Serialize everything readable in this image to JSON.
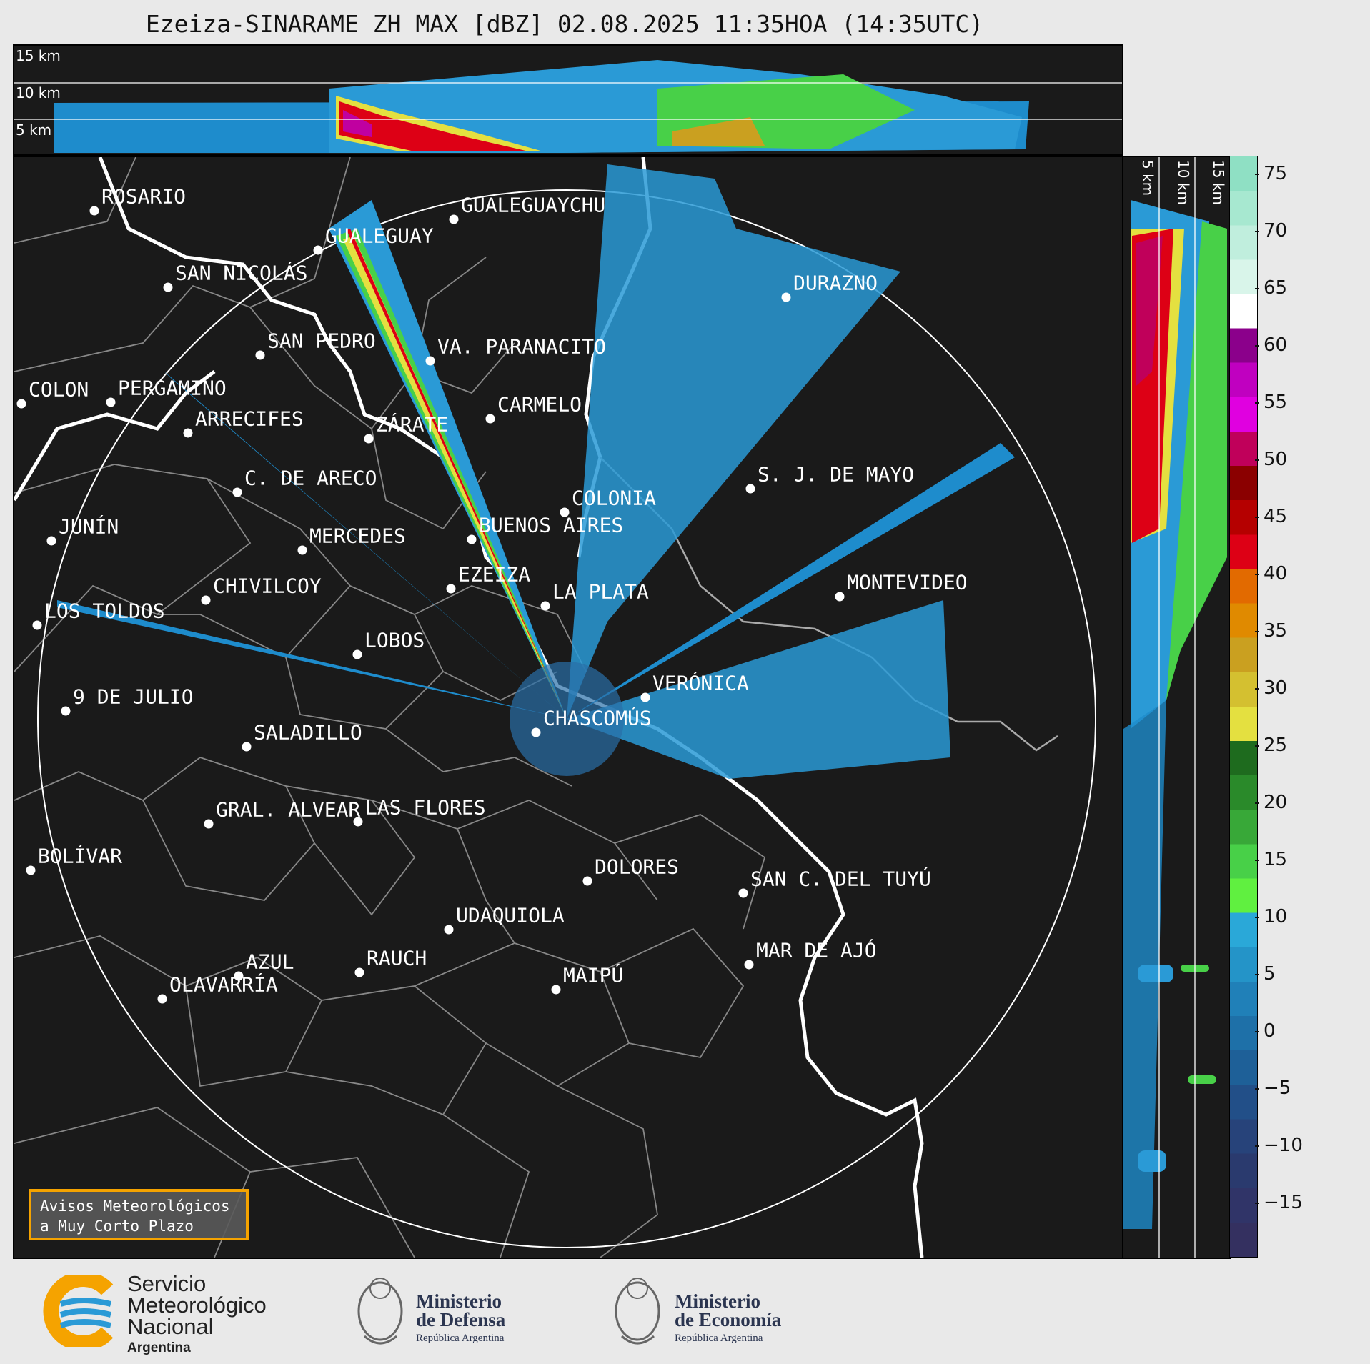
{
  "title": "Ezeiza-SINARAME ZH MAX [dBZ] 02.08.2025 11:35HOA (14:35UTC)",
  "top_panel": {
    "altitude_labels": [
      "15 km",
      "10 km",
      "5 km"
    ]
  },
  "side_panel": {
    "altitude_labels": [
      "5 km",
      "10 km",
      "15 km"
    ]
  },
  "cities": [
    {
      "name": "ROSARIO"
    },
    {
      "name": "GUALEGUAYCHU"
    },
    {
      "name": "GUALEGUAY"
    },
    {
      "name": "SAN NICOLÁS"
    },
    {
      "name": "DURAZNO"
    },
    {
      "name": "SAN PEDRO"
    },
    {
      "name": "VA. PARANACITO"
    },
    {
      "name": "COLON"
    },
    {
      "name": "PERGAMINO"
    },
    {
      "name": "CARMELO"
    },
    {
      "name": "ARRECIFES"
    },
    {
      "name": "ZÁRATE"
    },
    {
      "name": "S. J. DE MAYO"
    },
    {
      "name": "C. DE ARECO"
    },
    {
      "name": "COLONIA"
    },
    {
      "name": "JUNÍN"
    },
    {
      "name": "BUENOS AIRES"
    },
    {
      "name": "MERCEDES"
    },
    {
      "name": "EZEIZA"
    },
    {
      "name": "MONTEVIDEO"
    },
    {
      "name": "CHIVILCOY"
    },
    {
      "name": "LA PLATA"
    },
    {
      "name": "LOS TOLDOS"
    },
    {
      "name": "LOBOS"
    },
    {
      "name": "VERÓNICA"
    },
    {
      "name": "9 DE JULIO"
    },
    {
      "name": "CHASCOMÚS"
    },
    {
      "name": "SALADILLO"
    },
    {
      "name": "GRAL. ALVEAR"
    },
    {
      "name": "LAS FLORES"
    },
    {
      "name": "BOLÍVAR"
    },
    {
      "name": "DOLORES"
    },
    {
      "name": "SAN C. DEL TUYÚ"
    },
    {
      "name": "UDAQUIOLA"
    },
    {
      "name": "MAR DE AJÓ"
    },
    {
      "name": "AZUL"
    },
    {
      "name": "RAUCH"
    },
    {
      "name": "MAIPÚ"
    },
    {
      "name": "OLAVARRÍA"
    }
  ],
  "colorbar": {
    "unit": "dBZ",
    "ticks": [
      "75",
      "70",
      "65",
      "60",
      "55",
      "50",
      "45",
      "40",
      "35",
      "30",
      "25",
      "20",
      "15",
      "10",
      "5",
      "0",
      "−5",
      "−10",
      "−15"
    ],
    "colors": [
      "#8fe0c4",
      "#a7e8d0",
      "#c0eedd",
      "#d9f5ea",
      "#ffffff",
      "#8b008b",
      "#c000c0",
      "#e000e0",
      "#c0005a",
      "#8b0000",
      "#b50000",
      "#dd0015",
      "#e26a00",
      "#e08a00",
      "#caa020",
      "#d4c030",
      "#e4e040",
      "#1e6b1e",
      "#2a8a2a",
      "#38a838",
      "#48d048",
      "#60f040",
      "#2aa8d8",
      "#2494c8",
      "#2080b8",
      "#1e70a8",
      "#1e6098",
      "#224f88",
      "#27437a",
      "#2a3a6e",
      "#303468",
      "#343060"
    ]
  },
  "radar": {
    "range_ring_km": 240,
    "site": "EZEIZA"
  },
  "avisos": {
    "line1": "Avisos Meteorológicos",
    "line2": "a Muy Corto Plazo"
  },
  "footer": {
    "smn": {
      "line1": "Servicio",
      "line2": "Meteorológico",
      "line3": "Nacional",
      "line4": "Argentina"
    },
    "defensa": {
      "line1": "Ministerio",
      "line2": "de Defensa",
      "line3": "República Argentina"
    },
    "economia": {
      "line1": "Ministerio",
      "line2": "de Economía",
      "line3": "República Argentina"
    }
  }
}
